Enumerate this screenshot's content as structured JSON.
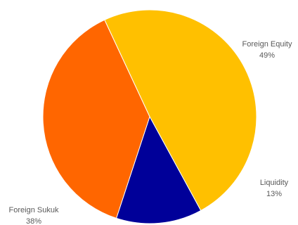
{
  "chart_data": {
    "type": "pie",
    "title": "",
    "slices": [
      {
        "label": "Foreign Equity",
        "value": 49,
        "value_label": "49%",
        "color": "#FFC000"
      },
      {
        "label": "Liquidity",
        "value": 13,
        "value_label": "13%",
        "color": "#000099"
      },
      {
        "label": "Foreign Sukuk",
        "value": 38,
        "value_label": "38%",
        "color": "#FF6600"
      }
    ],
    "start_angle_deg": -115,
    "direction": "clockwise",
    "legend": "none",
    "labels": "outside"
  }
}
